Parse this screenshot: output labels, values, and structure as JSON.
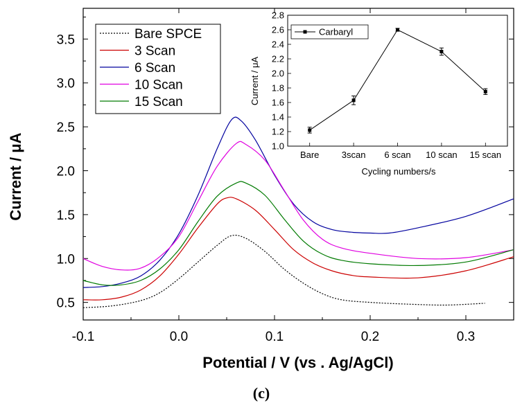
{
  "caption": "(c)",
  "chart_data": [
    {
      "type": "line",
      "role": "main",
      "xlabel": "Potential / V (vs . Ag/AgCl)",
      "ylabel": "Current / μA",
      "xlim": [
        -0.1,
        0.35
      ],
      "ylim": [
        0.3,
        3.85
      ],
      "xticks": [
        -0.1,
        0.0,
        0.1,
        0.2,
        0.3
      ],
      "xtick_labels": [
        "-0.1",
        "0.0",
        "0.1",
        "0.2",
        "0.3"
      ],
      "yticks": [
        0.5,
        1.0,
        1.5,
        2.0,
        2.5,
        3.0,
        3.5
      ],
      "ytick_labels": [
        "0.5",
        "1.0",
        "1.5",
        "2.0",
        "2.5",
        "3.0",
        "3.5"
      ],
      "legend_position": "top-left",
      "series": [
        {
          "name": "Bare SPCE",
          "color": "#000000",
          "dash": "dotted",
          "points": [
            [
              -0.1,
              0.44
            ],
            [
              -0.07,
              0.46
            ],
            [
              -0.04,
              0.52
            ],
            [
              -0.02,
              0.61
            ],
            [
              0.0,
              0.77
            ],
            [
              0.02,
              0.96
            ],
            [
              0.04,
              1.15
            ],
            [
              0.055,
              1.26
            ],
            [
              0.07,
              1.23
            ],
            [
              0.09,
              1.08
            ],
            [
              0.11,
              0.88
            ],
            [
              0.13,
              0.72
            ],
            [
              0.15,
              0.6
            ],
            [
              0.17,
              0.53
            ],
            [
              0.2,
              0.5
            ],
            [
              0.24,
              0.48
            ],
            [
              0.28,
              0.47
            ],
            [
              0.32,
              0.49
            ]
          ]
        },
        {
          "name": "3 Scan",
          "color": "#cc0000",
          "dash": "solid",
          "points": [
            [
              -0.1,
              0.53
            ],
            [
              -0.08,
              0.53
            ],
            [
              -0.06,
              0.56
            ],
            [
              -0.04,
              0.64
            ],
            [
              -0.02,
              0.8
            ],
            [
              0.0,
              1.05
            ],
            [
              0.02,
              1.35
            ],
            [
              0.04,
              1.62
            ],
            [
              0.05,
              1.69
            ],
            [
              0.06,
              1.68
            ],
            [
              0.08,
              1.55
            ],
            [
              0.1,
              1.33
            ],
            [
              0.12,
              1.1
            ],
            [
              0.14,
              0.95
            ],
            [
              0.16,
              0.86
            ],
            [
              0.18,
              0.81
            ],
            [
              0.2,
              0.79
            ],
            [
              0.25,
              0.78
            ],
            [
              0.3,
              0.86
            ],
            [
              0.35,
              1.02
            ]
          ]
        },
        {
          "name": "6 Scan",
          "color": "#00009e",
          "dash": "solid",
          "points": [
            [
              -0.1,
              0.67
            ],
            [
              -0.08,
              0.68
            ],
            [
              -0.06,
              0.72
            ],
            [
              -0.04,
              0.8
            ],
            [
              -0.02,
              0.98
            ],
            [
              0.0,
              1.28
            ],
            [
              0.02,
              1.72
            ],
            [
              0.04,
              2.25
            ],
            [
              0.055,
              2.58
            ],
            [
              0.065,
              2.57
            ],
            [
              0.08,
              2.35
            ],
            [
              0.1,
              1.95
            ],
            [
              0.12,
              1.62
            ],
            [
              0.14,
              1.42
            ],
            [
              0.16,
              1.33
            ],
            [
              0.18,
              1.3
            ],
            [
              0.2,
              1.29
            ],
            [
              0.22,
              1.29
            ],
            [
              0.25,
              1.35
            ],
            [
              0.3,
              1.48
            ],
            [
              0.35,
              1.68
            ]
          ]
        },
        {
          "name": "10 Scan",
          "color": "#e000e0",
          "dash": "solid",
          "points": [
            [
              -0.1,
              1.0
            ],
            [
              -0.08,
              0.91
            ],
            [
              -0.06,
              0.87
            ],
            [
              -0.04,
              0.89
            ],
            [
              -0.02,
              1.02
            ],
            [
              0.0,
              1.25
            ],
            [
              0.02,
              1.65
            ],
            [
              0.04,
              2.05
            ],
            [
              0.06,
              2.31
            ],
            [
              0.07,
              2.3
            ],
            [
              0.09,
              2.12
            ],
            [
              0.11,
              1.78
            ],
            [
              0.13,
              1.44
            ],
            [
              0.15,
              1.22
            ],
            [
              0.17,
              1.12
            ],
            [
              0.2,
              1.06
            ],
            [
              0.25,
              1.0
            ],
            [
              0.3,
              1.01
            ],
            [
              0.35,
              1.1
            ]
          ]
        },
        {
          "name": "15 Scan",
          "color": "#007a00",
          "dash": "solid",
          "points": [
            [
              -0.1,
              0.75
            ],
            [
              -0.08,
              0.7
            ],
            [
              -0.06,
              0.7
            ],
            [
              -0.04,
              0.75
            ],
            [
              -0.02,
              0.88
            ],
            [
              0.0,
              1.1
            ],
            [
              0.02,
              1.42
            ],
            [
              0.04,
              1.71
            ],
            [
              0.06,
              1.86
            ],
            [
              0.07,
              1.86
            ],
            [
              0.09,
              1.72
            ],
            [
              0.11,
              1.45
            ],
            [
              0.13,
              1.2
            ],
            [
              0.15,
              1.05
            ],
            [
              0.17,
              0.98
            ],
            [
              0.2,
              0.94
            ],
            [
              0.25,
              0.92
            ],
            [
              0.3,
              0.96
            ],
            [
              0.35,
              1.1
            ]
          ]
        }
      ]
    },
    {
      "type": "line",
      "role": "inset",
      "xlabel": "Cycling numbers/s",
      "ylabel": "Current / μA",
      "ylim": [
        1.0,
        2.8
      ],
      "yticks": [
        1.0,
        1.2,
        1.4,
        1.6,
        1.8,
        2.0,
        2.2,
        2.4,
        2.6,
        2.8
      ],
      "ytick_labels": [
        "1.0",
        "1.2",
        "1.4",
        "1.6",
        "1.8",
        "2.0",
        "2.2",
        "2.4",
        "2.6",
        "2.8"
      ],
      "categories": [
        "Bare",
        "3scan",
        "6 scan",
        "10 scan",
        "15 scan"
      ],
      "legend_position": "top-left",
      "series": [
        {
          "name": "Carbaryl",
          "color": "#000000",
          "marker": "square",
          "values": [
            1.22,
            1.63,
            2.6,
            2.3,
            1.75
          ],
          "errors": [
            0.04,
            0.06,
            0.02,
            0.05,
            0.04
          ]
        }
      ]
    }
  ]
}
